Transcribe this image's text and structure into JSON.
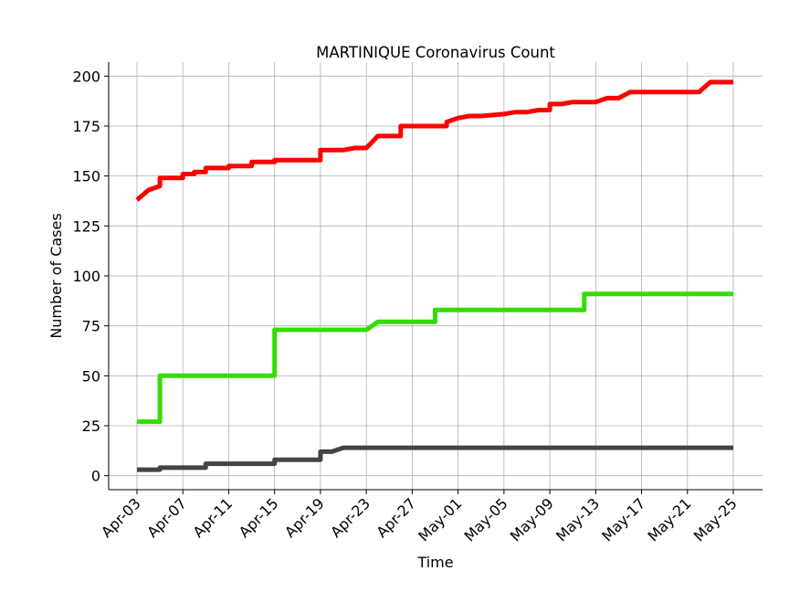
{
  "chart_data": {
    "type": "line",
    "title": "MARTINIQUE Coronavirus Count",
    "xlabel": "Time",
    "ylabel": "Number of Cases",
    "ylim": [
      -7,
      207
    ],
    "yticks": [
      0,
      25,
      50,
      75,
      100,
      125,
      150,
      175,
      200
    ],
    "xticks": [
      "Apr-03",
      "Apr-07",
      "Apr-11",
      "Apr-15",
      "Apr-19",
      "Apr-23",
      "Apr-27",
      "May-01",
      "May-05",
      "May-09",
      "May-13",
      "May-17",
      "May-21",
      "May-25"
    ],
    "grid": true,
    "legend": "none",
    "x_start": "Apr-03",
    "x_end": "May-25",
    "series": [
      {
        "color": "#ff0000",
        "x": [
          "Apr-03",
          "Apr-04",
          "Apr-05",
          "Apr-05",
          "Apr-07",
          "Apr-07",
          "Apr-08",
          "Apr-08",
          "Apr-09",
          "Apr-09",
          "Apr-11",
          "Apr-11",
          "Apr-13",
          "Apr-13",
          "Apr-15",
          "Apr-15",
          "Apr-19",
          "Apr-19",
          "Apr-21",
          "Apr-22",
          "Apr-23",
          "Apr-24",
          "Apr-26",
          "Apr-26",
          "Apr-30",
          "Apr-30",
          "May-01",
          "May-01",
          "May-02",
          "May-03",
          "May-05",
          "May-05",
          "May-06",
          "May-07",
          "May-08",
          "May-09",
          "May-09",
          "May-10",
          "May-11",
          "May-13",
          "May-14",
          "May-15",
          "May-16",
          "May-22",
          "May-23",
          "May-25"
        ],
        "values": [
          138,
          143,
          145,
          149,
          149,
          151,
          151,
          152,
          152,
          154,
          154,
          155,
          155,
          157,
          157,
          158,
          158,
          163,
          163,
          164,
          164,
          170,
          170,
          175,
          175,
          177,
          179,
          179,
          180,
          180,
          181,
          181,
          182,
          182,
          183,
          183,
          186,
          186,
          187,
          187,
          189,
          189,
          192,
          192,
          197,
          197
        ]
      },
      {
        "color": "#33dd00",
        "x": [
          "Apr-03",
          "Apr-05",
          "Apr-05",
          "Apr-15",
          "Apr-15",
          "Apr-23",
          "Apr-24",
          "Apr-29",
          "Apr-29",
          "May-12",
          "May-12",
          "May-25"
        ],
        "values": [
          27,
          27,
          50,
          50,
          73,
          73,
          77,
          77,
          83,
          83,
          91,
          91
        ]
      },
      {
        "color": "#444444",
        "x": [
          "Apr-03",
          "Apr-05",
          "Apr-05",
          "Apr-09",
          "Apr-09",
          "Apr-15",
          "Apr-15",
          "Apr-19",
          "Apr-19",
          "Apr-20",
          "Apr-21",
          "May-25"
        ],
        "values": [
          3,
          3,
          4,
          4,
          6,
          6,
          8,
          8,
          12,
          12,
          14,
          14
        ]
      }
    ]
  }
}
